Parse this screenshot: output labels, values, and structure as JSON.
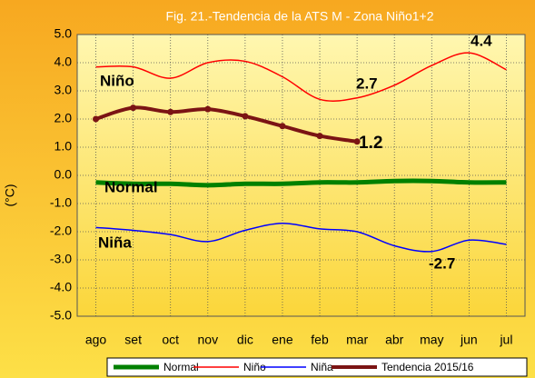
{
  "chart_data": {
    "type": "line",
    "title": "Fig. 21.-Tendencia  de la ATS M - Zona Niño1+2",
    "y_label": "(°C)",
    "categories": [
      "ago",
      "set",
      "oct",
      "nov",
      "dic",
      "ene",
      "feb",
      "mar",
      "abr",
      "may",
      "jun",
      "jul"
    ],
    "series": [
      {
        "name": "Normal",
        "color": "#008000",
        "values": [
          -0.25,
          -0.3,
          -0.3,
          -0.35,
          -0.3,
          -0.3,
          -0.25,
          -0.25,
          -0.2,
          -0.2,
          -0.25,
          -0.25
        ]
      },
      {
        "name": "Niño",
        "color": "#ff0000",
        "values": [
          3.85,
          3.85,
          3.45,
          4.0,
          4.05,
          3.5,
          2.7,
          2.75,
          3.2,
          3.9,
          4.35,
          3.75
        ]
      },
      {
        "name": "Niña",
        "color": "#0000ff",
        "values": [
          -1.85,
          -1.95,
          -2.1,
          -2.35,
          -1.95,
          -1.7,
          -1.9,
          -2.0,
          -2.5,
          -2.7,
          -2.3,
          -2.45
        ]
      },
      {
        "name": "Tendencia 2015/16",
        "color": "#7b1414",
        "values": [
          2.0,
          2.4,
          2.25,
          2.35,
          2.1,
          1.75,
          1.4,
          1.2,
          null,
          null,
          null,
          null
        ]
      }
    ],
    "ylim": [
      -5,
      5
    ],
    "yticks": [
      {
        "value": -5,
        "label": "-5.0"
      },
      {
        "value": -4,
        "label": "-4.0"
      },
      {
        "value": -3,
        "label": "-3.0"
      },
      {
        "value": -2,
        "label": "-2.0"
      },
      {
        "value": -1,
        "label": "-1.0"
      },
      {
        "value": 0,
        "label": "0.0"
      },
      {
        "value": 1,
        "label": "1.0"
      },
      {
        "value": 2,
        "label": "2.0"
      },
      {
        "value": 3,
        "label": "3.0"
      },
      {
        "value": 4,
        "label": "4.0"
      },
      {
        "value": 5,
        "label": "5.0"
      }
    ],
    "grid": true,
    "legend": "bottom",
    "annotations": [
      "Niño",
      "Normal",
      "Niña",
      "2.7",
      "4.4",
      "1.2",
      "-2.7"
    ]
  }
}
